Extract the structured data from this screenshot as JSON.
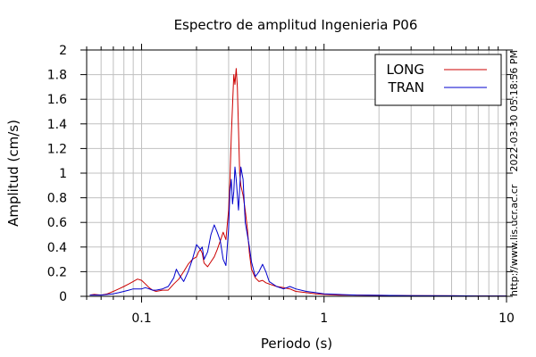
{
  "chart_data": {
    "type": "line",
    "title": "Espectro de amplitud Ingenieria P06",
    "xlabel": "Periodo (s)",
    "ylabel": "Amplitud (cm/s)",
    "x_scale": "log",
    "xlim": [
      0.05,
      10
    ],
    "ylim": [
      0,
      2
    ],
    "grid": true,
    "legend_position": "top-right",
    "x_tick_labels": [
      {
        "value": 0.1,
        "label": "0.1"
      },
      {
        "value": 1,
        "label": "1"
      },
      {
        "value": 10,
        "label": "10"
      }
    ],
    "y_ticks": [
      0,
      0.2,
      0.4,
      0.6,
      0.8,
      1,
      1.2,
      1.4,
      1.6,
      1.8,
      2
    ],
    "y_tick_labels": [
      "0",
      "0.2",
      "0.4",
      "0.6",
      "0.8",
      "1",
      "1.2",
      "1.4",
      "1.6",
      "1.8",
      "2"
    ],
    "side_annotation_top": "2022-03-30 05:18:56 PM",
    "side_annotation_bottom": "http://www.lis.ucr.ac.cr",
    "series": [
      {
        "name": "LONG",
        "color": "#cc0000",
        "x": [
          0.052,
          0.055,
          0.06,
          0.065,
          0.07,
          0.075,
          0.08,
          0.085,
          0.09,
          0.095,
          0.1,
          0.105,
          0.11,
          0.115,
          0.12,
          0.13,
          0.14,
          0.15,
          0.16,
          0.17,
          0.18,
          0.19,
          0.2,
          0.205,
          0.21,
          0.215,
          0.22,
          0.23,
          0.24,
          0.25,
          0.26,
          0.27,
          0.28,
          0.29,
          0.3,
          0.305,
          0.31,
          0.315,
          0.32,
          0.325,
          0.33,
          0.335,
          0.34,
          0.345,
          0.35,
          0.36,
          0.37,
          0.38,
          0.39,
          0.4,
          0.42,
          0.44,
          0.46,
          0.48,
          0.5,
          0.55,
          0.6,
          0.65,
          0.7,
          0.8,
          0.9,
          1.0,
          1.2,
          1.5,
          2,
          3,
          5,
          7,
          10
        ],
        "y": [
          0.01,
          0.015,
          0.01,
          0.02,
          0.04,
          0.06,
          0.08,
          0.1,
          0.12,
          0.14,
          0.13,
          0.1,
          0.07,
          0.05,
          0.04,
          0.05,
          0.05,
          0.1,
          0.14,
          0.2,
          0.26,
          0.3,
          0.32,
          0.36,
          0.38,
          0.35,
          0.27,
          0.24,
          0.28,
          0.32,
          0.38,
          0.45,
          0.52,
          0.46,
          0.7,
          0.95,
          1.3,
          1.55,
          1.8,
          1.72,
          1.85,
          1.7,
          1.35,
          1.0,
          0.9,
          0.82,
          0.7,
          0.55,
          0.35,
          0.22,
          0.15,
          0.12,
          0.13,
          0.11,
          0.1,
          0.08,
          0.07,
          0.06,
          0.04,
          0.03,
          0.02,
          0.015,
          0.01,
          0.01,
          0.008,
          0.005,
          0.004,
          0.003,
          0.003
        ]
      },
      {
        "name": "TRAN",
        "color": "#0000cc",
        "x": [
          0.052,
          0.055,
          0.06,
          0.065,
          0.07,
          0.075,
          0.08,
          0.085,
          0.09,
          0.095,
          0.1,
          0.105,
          0.11,
          0.115,
          0.12,
          0.13,
          0.14,
          0.15,
          0.155,
          0.16,
          0.17,
          0.18,
          0.19,
          0.2,
          0.205,
          0.21,
          0.215,
          0.22,
          0.23,
          0.24,
          0.25,
          0.26,
          0.27,
          0.28,
          0.29,
          0.3,
          0.305,
          0.31,
          0.315,
          0.32,
          0.325,
          0.33,
          0.34,
          0.35,
          0.36,
          0.37,
          0.38,
          0.39,
          0.4,
          0.42,
          0.44,
          0.46,
          0.48,
          0.5,
          0.55,
          0.6,
          0.65,
          0.7,
          0.8,
          0.9,
          1.0,
          1.2,
          1.5,
          2,
          3,
          5,
          7,
          10
        ],
        "y": [
          0.01,
          0.01,
          0.01,
          0.015,
          0.02,
          0.03,
          0.04,
          0.05,
          0.06,
          0.06,
          0.06,
          0.07,
          0.06,
          0.05,
          0.05,
          0.06,
          0.08,
          0.15,
          0.22,
          0.18,
          0.12,
          0.2,
          0.3,
          0.42,
          0.4,
          0.38,
          0.4,
          0.3,
          0.36,
          0.5,
          0.58,
          0.52,
          0.45,
          0.3,
          0.25,
          0.55,
          0.85,
          0.95,
          0.75,
          0.85,
          1.05,
          0.95,
          0.7,
          1.05,
          0.95,
          0.6,
          0.5,
          0.4,
          0.28,
          0.16,
          0.2,
          0.26,
          0.2,
          0.12,
          0.08,
          0.06,
          0.08,
          0.06,
          0.04,
          0.03,
          0.02,
          0.015,
          0.01,
          0.008,
          0.005,
          0.004,
          0.003,
          0.003
        ]
      }
    ]
  }
}
